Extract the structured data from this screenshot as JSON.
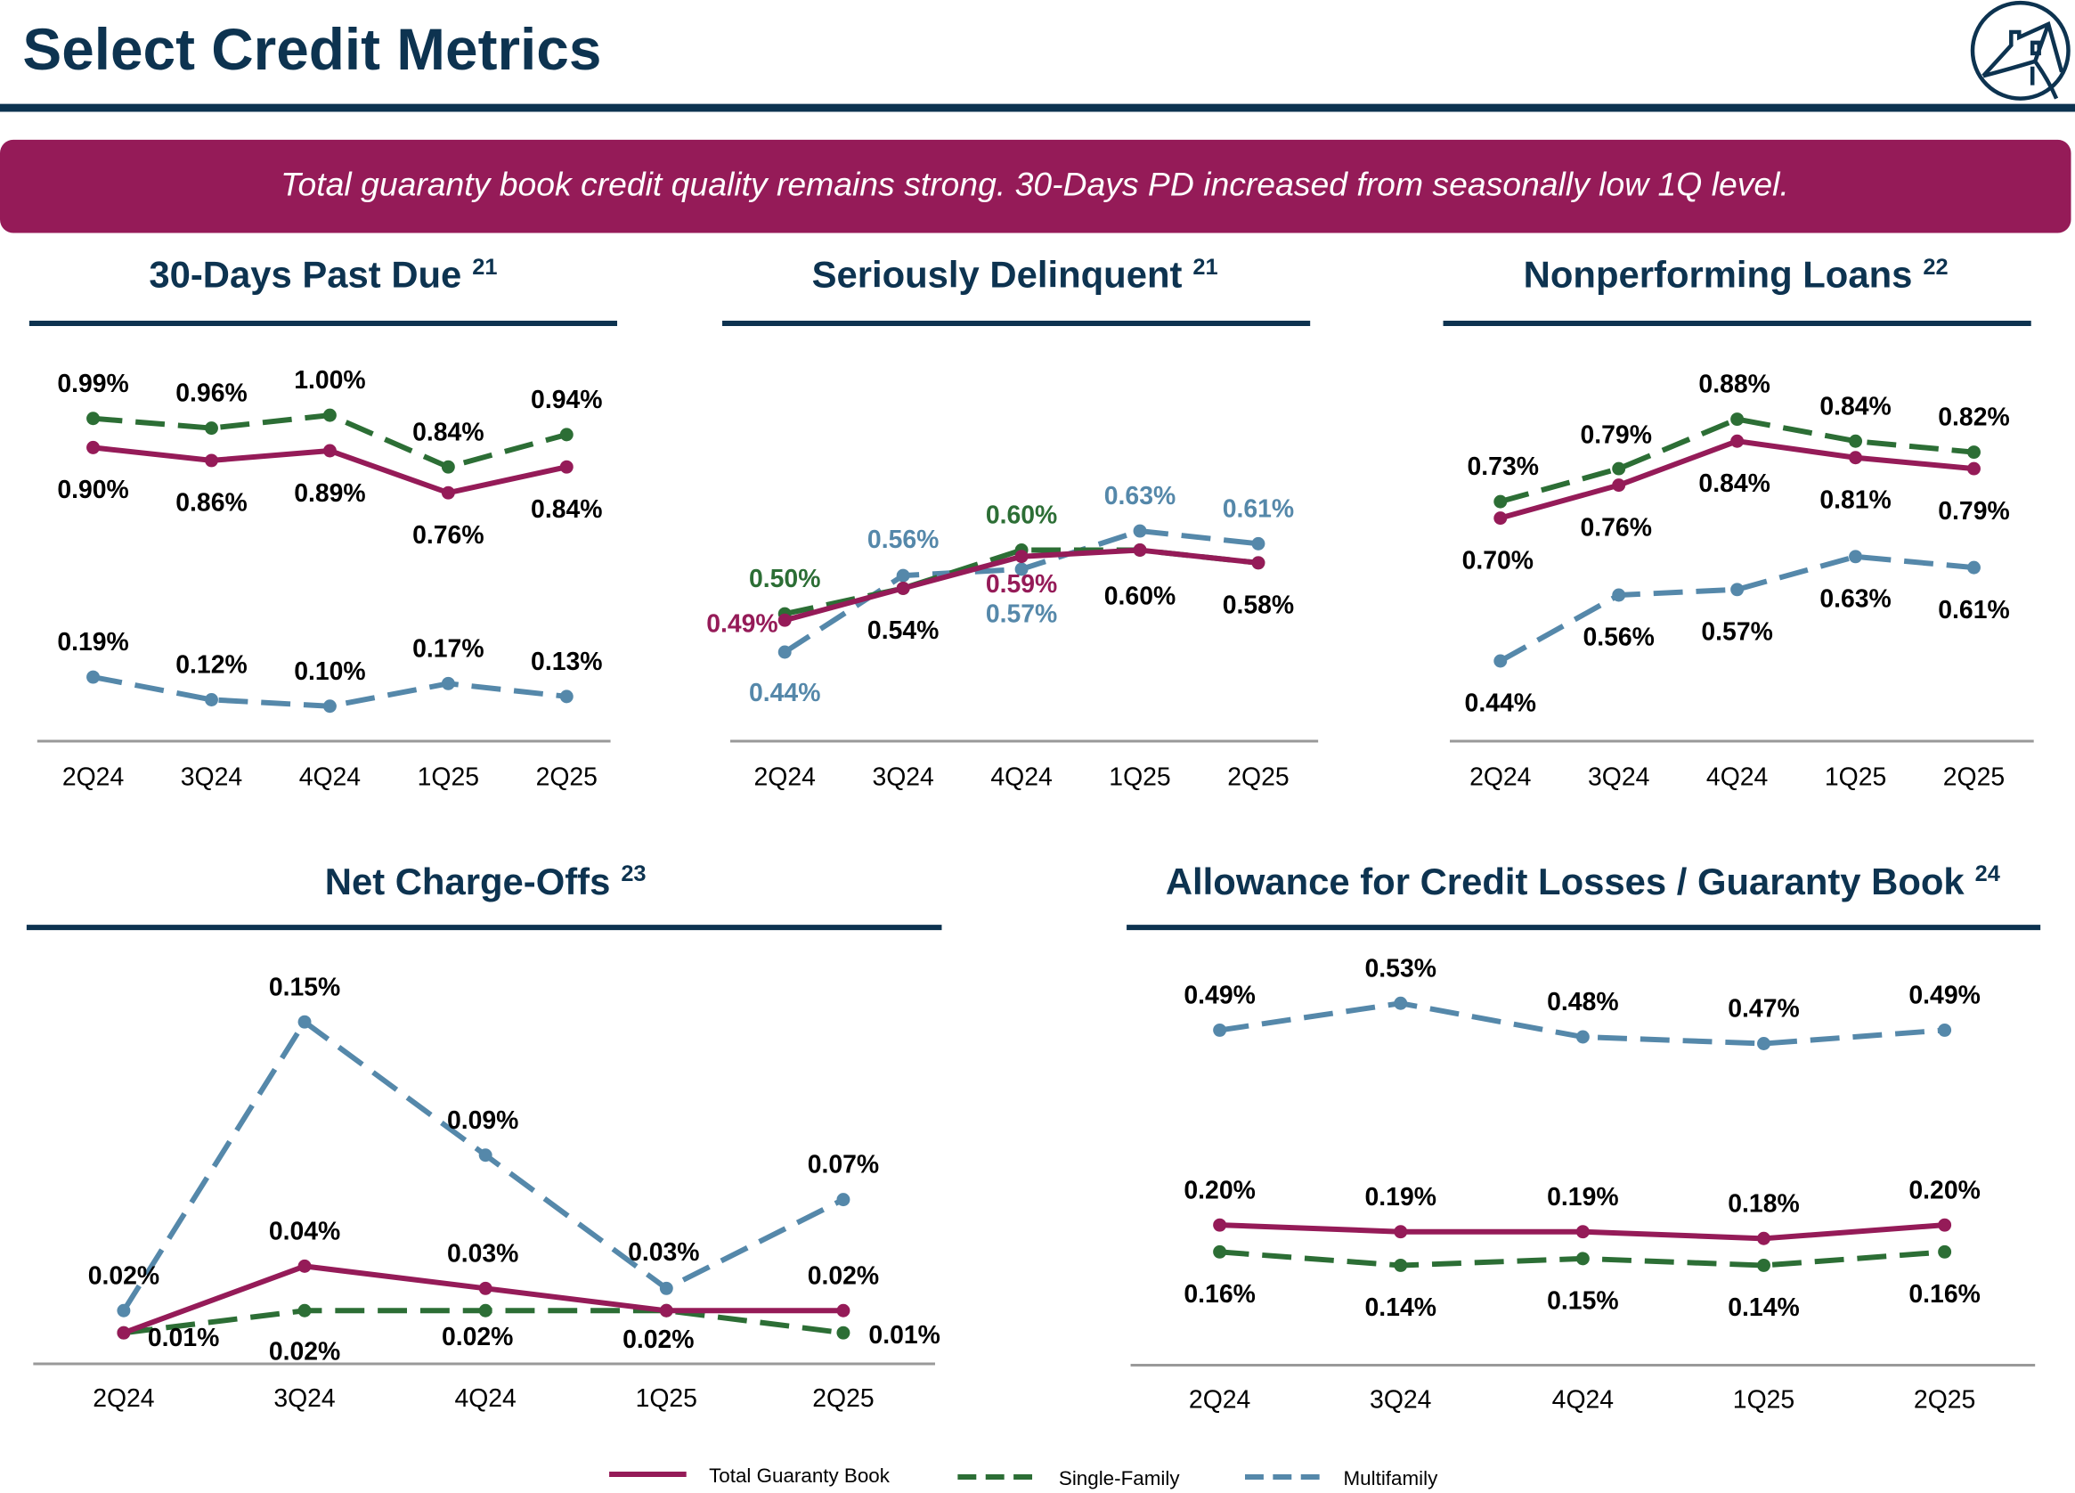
{
  "header": {
    "title": "Select Credit Metrics",
    "logo_icon": "house-in-circle-logo"
  },
  "banner": {
    "text": "Total guaranty book credit quality remains strong. 30-Days PD increased from seasonally low 1Q level."
  },
  "colors": {
    "navy": "#0d3350",
    "banner": "#951b58",
    "total": "#951b58",
    "single_family": "#2c6e35",
    "multifamily": "#5588aa",
    "axis": "#999999"
  },
  "legend": [
    {
      "name": "Total Guaranty Book",
      "style": "solid"
    },
    {
      "name": "Single-Family",
      "style": "dashed"
    },
    {
      "name": "Multifamily",
      "style": "dashed"
    }
  ],
  "chart_data": [
    {
      "type": "line",
      "title": "30-Days Past Due",
      "footnote": "21",
      "categories": [
        "2Q24",
        "3Q24",
        "4Q24",
        "1Q25",
        "2Q25"
      ],
      "series": [
        {
          "name": "Single-Family",
          "values": [
            0.99,
            0.96,
            1.0,
            0.84,
            0.94
          ],
          "labels": [
            "0.99%",
            "0.96%",
            "1.00%",
            "0.84%",
            "0.94%"
          ],
          "label_color": "black"
        },
        {
          "name": "Total Guaranty Book",
          "values": [
            0.9,
            0.86,
            0.89,
            0.76,
            0.84
          ],
          "labels": [
            "0.90%",
            "0.86%",
            "0.89%",
            "0.76%",
            "0.84%"
          ],
          "label_color": "black"
        },
        {
          "name": "Multifamily",
          "values": [
            0.19,
            0.12,
            0.1,
            0.17,
            0.13
          ],
          "labels": [
            "0.19%",
            "0.12%",
            "0.10%",
            "0.17%",
            "0.13%"
          ],
          "label_color": "black"
        }
      ]
    },
    {
      "type": "line",
      "title": "Seriously Delinquent",
      "footnote": "21",
      "categories": [
        "2Q24",
        "3Q24",
        "4Q24",
        "1Q25",
        "2Q25"
      ],
      "series": [
        {
          "name": "Single-Family",
          "values": [
            0.5,
            0.54,
            0.6,
            0.6,
            0.58
          ],
          "labels": [
            "0.50%",
            null,
            "0.60%",
            null,
            null
          ],
          "label_color": "series"
        },
        {
          "name": "Total Guaranty Book",
          "values": [
            0.49,
            0.54,
            0.59,
            0.6,
            0.58
          ],
          "labels": [
            "0.49%",
            "0.54%",
            "0.59%",
            "0.60%",
            "0.58%"
          ],
          "label_color": "mixed"
        },
        {
          "name": "Multifamily",
          "values": [
            0.44,
            0.56,
            0.57,
            0.63,
            0.61
          ],
          "labels": [
            "0.44%",
            "0.56%",
            "0.57%",
            "0.63%",
            "0.61%"
          ],
          "label_color": "series"
        }
      ]
    },
    {
      "type": "line",
      "title": "Nonperforming Loans",
      "footnote": "22",
      "categories": [
        "2Q24",
        "3Q24",
        "4Q24",
        "1Q25",
        "2Q25"
      ],
      "series": [
        {
          "name": "Single-Family",
          "values": [
            0.73,
            0.79,
            0.88,
            0.84,
            0.82
          ],
          "labels": [
            "0.73%",
            "0.79%",
            "0.88%",
            "0.84%",
            "0.82%"
          ],
          "label_color": "black"
        },
        {
          "name": "Total Guaranty Book",
          "values": [
            0.7,
            0.76,
            0.84,
            0.81,
            0.79
          ],
          "labels": [
            "0.70%",
            "0.76%",
            "0.84%",
            "0.81%",
            "0.79%"
          ],
          "label_color": "black"
        },
        {
          "name": "Multifamily",
          "values": [
            0.44,
            0.56,
            0.57,
            0.63,
            0.61
          ],
          "labels": [
            "0.44%",
            "0.56%",
            "0.57%",
            "0.63%",
            "0.61%"
          ],
          "label_color": "black"
        }
      ]
    },
    {
      "type": "line",
      "title": "Net Charge-Offs",
      "footnote": "23",
      "categories": [
        "2Q24",
        "3Q24",
        "4Q24",
        "1Q25",
        "2Q25"
      ],
      "series": [
        {
          "name": "Single-Family",
          "values": [
            0.01,
            0.02,
            0.02,
            0.02,
            0.01
          ],
          "labels": [
            "0.01%",
            "0.02%",
            "0.02%",
            "0.02%",
            "0.01%"
          ],
          "label_color": "black"
        },
        {
          "name": "Total Guaranty Book",
          "values": [
            0.01,
            0.04,
            0.03,
            0.02,
            0.02
          ],
          "labels": [
            null,
            "0.04%",
            "0.03%",
            null,
            "0.02%"
          ],
          "label_color": "black"
        },
        {
          "name": "Multifamily",
          "values": [
            0.02,
            0.15,
            0.09,
            0.03,
            0.07
          ],
          "labels": [
            "0.02%",
            "0.15%",
            "0.09%",
            "0.03%",
            "0.07%"
          ],
          "label_color": "black"
        }
      ]
    },
    {
      "type": "line",
      "title": "Allowance for Credit Losses / Guaranty Book",
      "footnote": "24",
      "categories": [
        "2Q24",
        "3Q24",
        "4Q24",
        "1Q25",
        "2Q25"
      ],
      "series": [
        {
          "name": "Single-Family",
          "values": [
            0.16,
            0.14,
            0.15,
            0.14,
            0.16
          ],
          "labels": [
            "0.16%",
            "0.14%",
            "0.15%",
            "0.14%",
            "0.16%"
          ],
          "label_color": "black"
        },
        {
          "name": "Total Guaranty Book",
          "values": [
            0.2,
            0.19,
            0.19,
            0.18,
            0.2
          ],
          "labels": [
            "0.20%",
            "0.19%",
            "0.19%",
            "0.18%",
            "0.20%"
          ],
          "label_color": "black"
        },
        {
          "name": "Multifamily",
          "values": [
            0.49,
            0.53,
            0.48,
            0.47,
            0.49
          ],
          "labels": [
            "0.49%",
            "0.53%",
            "0.48%",
            "0.47%",
            "0.49%"
          ],
          "label_color": "black"
        }
      ]
    }
  ]
}
